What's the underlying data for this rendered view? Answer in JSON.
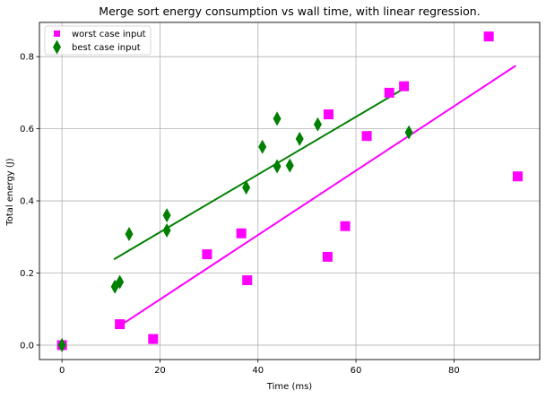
{
  "chart_data": {
    "type": "scatter",
    "title": "Merge sort energy consumption vs wall time, with linear regression.",
    "xlabel": "Time (ms)",
    "ylabel": "Total energy (J)",
    "xlim": [
      -4.6,
      97.5
    ],
    "ylim": [
      -0.04,
      0.895
    ],
    "xticks": [
      0,
      20,
      40,
      60,
      80
    ],
    "yticks": [
      0.0,
      0.2,
      0.4,
      0.6,
      0.8
    ],
    "xtick_labels": [
      "0",
      "20",
      "40",
      "60",
      "80"
    ],
    "ytick_labels": [
      "0.0",
      "0.2",
      "0.4",
      "0.6",
      "0.8"
    ],
    "grid": true,
    "legend_position": "top-left",
    "series": [
      {
        "name": "worst case input",
        "marker": "square",
        "color": "#ff00ff",
        "points": [
          [
            0,
            0.0
          ],
          [
            11.8,
            0.058
          ],
          [
            18.6,
            0.017
          ],
          [
            29.6,
            0.252
          ],
          [
            36.6,
            0.31
          ],
          [
            37.8,
            0.18
          ],
          [
            54.2,
            0.245
          ],
          [
            54.4,
            0.64
          ],
          [
            57.8,
            0.33
          ],
          [
            62.2,
            0.58
          ],
          [
            66.8,
            0.7
          ],
          [
            69.8,
            0.718
          ],
          [
            87.1,
            0.856
          ],
          [
            93.0,
            0.468
          ]
        ],
        "regression": {
          "x": [
            11.4,
            92.6
          ],
          "y": [
            0.05,
            0.775
          ]
        }
      },
      {
        "name": "best case input",
        "marker": "thin-diamond",
        "color": "#008000",
        "points": [
          [
            0,
            0.0
          ],
          [
            10.8,
            0.162
          ],
          [
            11.8,
            0.175
          ],
          [
            13.7,
            0.308
          ],
          [
            21.4,
            0.36
          ],
          [
            21.4,
            0.318
          ],
          [
            37.6,
            0.437
          ],
          [
            40.9,
            0.55
          ],
          [
            43.9,
            0.628
          ],
          [
            43.9,
            0.496
          ],
          [
            46.5,
            0.498
          ],
          [
            48.5,
            0.572
          ],
          [
            52.2,
            0.612
          ],
          [
            70.8,
            0.59
          ]
        ],
        "regression": {
          "x": [
            10.6,
            70.6
          ],
          "y": [
            0.238,
            0.718
          ]
        }
      }
    ]
  }
}
